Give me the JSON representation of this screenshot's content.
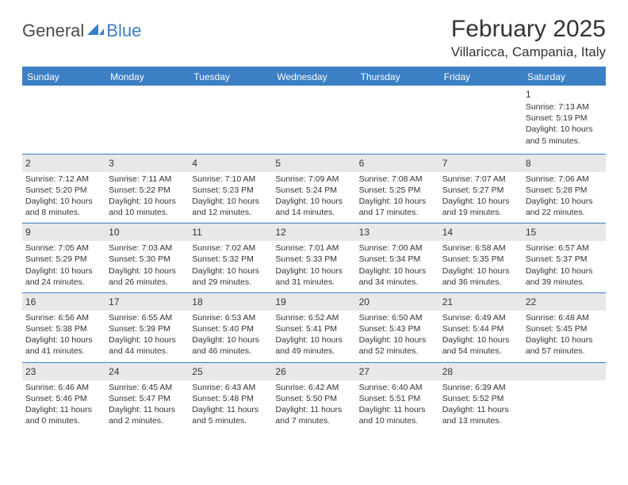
{
  "logo": {
    "text1": "General",
    "text2": "Blue"
  },
  "title": "February 2025",
  "location": "Villaricca, Campania, Italy",
  "colors": {
    "accent": "#3b7fc4",
    "header_bg": "#3b7fc4",
    "header_text": "#ffffff",
    "daynum_bg": "#e8e8e8",
    "text": "#333333",
    "background": "#ffffff"
  },
  "weekdays": [
    "Sunday",
    "Monday",
    "Tuesday",
    "Wednesday",
    "Thursday",
    "Friday",
    "Saturday"
  ],
  "weeks": [
    [
      null,
      null,
      null,
      null,
      null,
      null,
      {
        "n": "1",
        "sunrise": "7:13 AM",
        "sunset": "5:19 PM",
        "daylight": "10 hours and 5 minutes."
      }
    ],
    [
      {
        "n": "2",
        "sunrise": "7:12 AM",
        "sunset": "5:20 PM",
        "daylight": "10 hours and 8 minutes."
      },
      {
        "n": "3",
        "sunrise": "7:11 AM",
        "sunset": "5:22 PM",
        "daylight": "10 hours and 10 minutes."
      },
      {
        "n": "4",
        "sunrise": "7:10 AM",
        "sunset": "5:23 PM",
        "daylight": "10 hours and 12 minutes."
      },
      {
        "n": "5",
        "sunrise": "7:09 AM",
        "sunset": "5:24 PM",
        "daylight": "10 hours and 14 minutes."
      },
      {
        "n": "6",
        "sunrise": "7:08 AM",
        "sunset": "5:25 PM",
        "daylight": "10 hours and 17 minutes."
      },
      {
        "n": "7",
        "sunrise": "7:07 AM",
        "sunset": "5:27 PM",
        "daylight": "10 hours and 19 minutes."
      },
      {
        "n": "8",
        "sunrise": "7:06 AM",
        "sunset": "5:28 PM",
        "daylight": "10 hours and 22 minutes."
      }
    ],
    [
      {
        "n": "9",
        "sunrise": "7:05 AM",
        "sunset": "5:29 PM",
        "daylight": "10 hours and 24 minutes."
      },
      {
        "n": "10",
        "sunrise": "7:03 AM",
        "sunset": "5:30 PM",
        "daylight": "10 hours and 26 minutes."
      },
      {
        "n": "11",
        "sunrise": "7:02 AM",
        "sunset": "5:32 PM",
        "daylight": "10 hours and 29 minutes."
      },
      {
        "n": "12",
        "sunrise": "7:01 AM",
        "sunset": "5:33 PM",
        "daylight": "10 hours and 31 minutes."
      },
      {
        "n": "13",
        "sunrise": "7:00 AM",
        "sunset": "5:34 PM",
        "daylight": "10 hours and 34 minutes."
      },
      {
        "n": "14",
        "sunrise": "6:58 AM",
        "sunset": "5:35 PM",
        "daylight": "10 hours and 36 minutes."
      },
      {
        "n": "15",
        "sunrise": "6:57 AM",
        "sunset": "5:37 PM",
        "daylight": "10 hours and 39 minutes."
      }
    ],
    [
      {
        "n": "16",
        "sunrise": "6:56 AM",
        "sunset": "5:38 PM",
        "daylight": "10 hours and 41 minutes."
      },
      {
        "n": "17",
        "sunrise": "6:55 AM",
        "sunset": "5:39 PM",
        "daylight": "10 hours and 44 minutes."
      },
      {
        "n": "18",
        "sunrise": "6:53 AM",
        "sunset": "5:40 PM",
        "daylight": "10 hours and 46 minutes."
      },
      {
        "n": "19",
        "sunrise": "6:52 AM",
        "sunset": "5:41 PM",
        "daylight": "10 hours and 49 minutes."
      },
      {
        "n": "20",
        "sunrise": "6:50 AM",
        "sunset": "5:43 PM",
        "daylight": "10 hours and 52 minutes."
      },
      {
        "n": "21",
        "sunrise": "6:49 AM",
        "sunset": "5:44 PM",
        "daylight": "10 hours and 54 minutes."
      },
      {
        "n": "22",
        "sunrise": "6:48 AM",
        "sunset": "5:45 PM",
        "daylight": "10 hours and 57 minutes."
      }
    ],
    [
      {
        "n": "23",
        "sunrise": "6:46 AM",
        "sunset": "5:46 PM",
        "daylight": "11 hours and 0 minutes."
      },
      {
        "n": "24",
        "sunrise": "6:45 AM",
        "sunset": "5:47 PM",
        "daylight": "11 hours and 2 minutes."
      },
      {
        "n": "25",
        "sunrise": "6:43 AM",
        "sunset": "5:48 PM",
        "daylight": "11 hours and 5 minutes."
      },
      {
        "n": "26",
        "sunrise": "6:42 AM",
        "sunset": "5:50 PM",
        "daylight": "11 hours and 7 minutes."
      },
      {
        "n": "27",
        "sunrise": "6:40 AM",
        "sunset": "5:51 PM",
        "daylight": "11 hours and 10 minutes."
      },
      {
        "n": "28",
        "sunrise": "6:39 AM",
        "sunset": "5:52 PM",
        "daylight": "11 hours and 13 minutes."
      },
      null
    ]
  ]
}
